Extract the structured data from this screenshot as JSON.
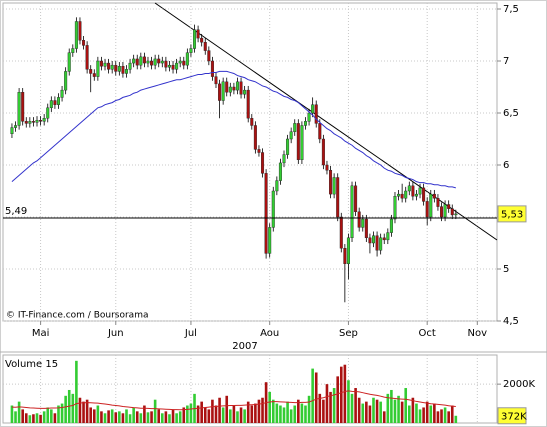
{
  "chart_data": [
    {
      "type": "candlestick",
      "categories": [
        null,
        null,
        null,
        null,
        null,
        null,
        null,
        null,
        null,
        null,
        "Mai",
        null,
        null,
        null,
        null,
        null,
        null,
        null,
        null,
        null,
        null,
        null,
        null,
        null,
        null,
        null,
        null,
        null,
        null,
        null,
        null,
        "Jun",
        null,
        null,
        null,
        null,
        null,
        null,
        null,
        null,
        null,
        null,
        null,
        null,
        null,
        null,
        null,
        null,
        null,
        null,
        null,
        null,
        "Jul",
        null,
        null,
        null,
        null,
        null,
        null,
        null,
        null,
        null,
        null,
        null,
        null,
        null,
        null,
        null,
        null,
        null,
        null,
        null,
        null,
        null,
        "Aou",
        null,
        null,
        null,
        null,
        null,
        null,
        null,
        null,
        null,
        null,
        null,
        null,
        null,
        null,
        null,
        null,
        null,
        null,
        null,
        null,
        null,
        "Sep",
        null,
        null,
        null,
        null,
        null,
        null,
        null,
        null,
        null,
        null,
        null,
        null,
        null,
        null,
        null,
        null,
        null,
        null,
        null,
        null,
        null,
        "Oct",
        null,
        null,
        null,
        null,
        null,
        null,
        null,
        null,
        null,
        null,
        null,
        null,
        null,
        "Nov",
        null,
        null,
        null,
        null,
        null
      ],
      "open": [
        null,
        null,
        6.3,
        6.36,
        6.38,
        6.7,
        6.42,
        6.4,
        6.42,
        6.41,
        6.43,
        6.42,
        6.45,
        6.55,
        6.62,
        6.58,
        6.65,
        6.72,
        6.9,
        7.08,
        7.12,
        7.38,
        7.2,
        7.15,
        6.92,
        6.88,
        6.85,
        7.0,
        6.95,
        6.98,
        6.92,
        6.96,
        6.9,
        6.95,
        6.88,
        6.92,
        6.98,
        7.02,
        6.96,
        7.04,
        6.98,
        7.0,
        6.96,
        7.02,
        6.98,
        7.0,
        6.94,
        6.96,
        6.92,
        6.98,
        7.0,
        6.96,
        7.08,
        7.12,
        7.3,
        7.22,
        7.18,
        7.1,
        7.0,
        6.85,
        6.78,
        6.62,
        6.8,
        6.7,
        6.75,
        6.72,
        6.8,
        6.68,
        6.72,
        6.45,
        6.38,
        6.15,
        6.12,
        5.92,
        5.15,
        5.4,
        5.75,
        5.85,
        6.02,
        6.1,
        6.25,
        6.32,
        6.4,
        6.05,
        6.38,
        6.42,
        6.5,
        6.58,
        6.4,
        6.25,
        6.0,
        5.95,
        5.72,
        5.88,
        5.5,
        5.2,
        5.05,
        5.3,
        5.8,
        5.55,
        5.4,
        5.48,
        5.3,
        5.25,
        5.32,
        5.18,
        5.3,
        5.28,
        5.35,
        5.48,
        5.7,
        5.72,
        5.68,
        5.75,
        5.8,
        5.7,
        5.72,
        5.78,
        5.65,
        5.5,
        5.72,
        5.68,
        5.6,
        5.5,
        5.62,
        5.58,
        5.52,
        null,
        null,
        null,
        null,
        null,
        null,
        null,
        null,
        null,
        null,
        null
      ],
      "high": [
        null,
        null,
        6.4,
        6.42,
        6.74,
        6.74,
        6.46,
        6.46,
        6.46,
        6.47,
        6.47,
        6.49,
        6.59,
        6.66,
        6.66,
        6.69,
        6.76,
        6.94,
        7.12,
        7.16,
        7.42,
        7.42,
        7.24,
        7.19,
        6.96,
        6.92,
        7.04,
        7.04,
        7.02,
        7.02,
        7.0,
        7.0,
        6.99,
        6.99,
        6.96,
        7.02,
        7.06,
        7.06,
        7.08,
        7.08,
        7.04,
        7.04,
        7.06,
        7.06,
        7.04,
        7.04,
        7.0,
        7.0,
        7.02,
        7.04,
        7.04,
        7.12,
        7.16,
        7.35,
        7.34,
        7.26,
        7.22,
        7.14,
        7.04,
        6.89,
        6.82,
        6.84,
        6.84,
        6.79,
        6.79,
        6.84,
        6.84,
        6.76,
        6.76,
        6.49,
        6.42,
        6.19,
        6.16,
        5.96,
        5.44,
        5.79,
        5.89,
        6.06,
        6.14,
        6.29,
        6.36,
        6.44,
        6.44,
        6.42,
        6.46,
        6.54,
        6.65,
        6.62,
        6.44,
        6.29,
        6.04,
        5.99,
        5.92,
        5.92,
        5.54,
        5.24,
        5.34,
        5.84,
        5.84,
        5.59,
        5.52,
        5.52,
        5.34,
        5.36,
        5.36,
        5.34,
        5.34,
        5.39,
        5.52,
        5.74,
        5.76,
        5.82,
        5.79,
        5.84,
        5.84,
        5.76,
        5.82,
        5.82,
        5.69,
        5.76,
        5.76,
        5.72,
        5.64,
        5.66,
        5.66,
        5.62,
        5.57,
        null,
        null,
        null,
        null,
        null,
        null,
        null,
        null,
        null,
        null,
        null
      ],
      "low": [
        null,
        null,
        6.26,
        6.32,
        6.34,
        6.38,
        6.36,
        6.36,
        6.37,
        6.37,
        6.38,
        6.38,
        6.41,
        6.51,
        6.54,
        6.54,
        6.61,
        6.68,
        6.86,
        7.04,
        7.08,
        7.16,
        7.11,
        6.88,
        6.7,
        6.81,
        6.81,
        6.91,
        6.91,
        6.88,
        6.88,
        6.86,
        6.86,
        6.84,
        6.84,
        6.88,
        6.94,
        6.92,
        6.92,
        6.94,
        6.94,
        6.92,
        6.92,
        6.94,
        6.94,
        6.9,
        6.9,
        6.88,
        6.88,
        6.94,
        6.92,
        6.92,
        7.04,
        7.08,
        7.18,
        7.14,
        7.06,
        6.96,
        6.81,
        6.74,
        6.45,
        6.58,
        6.66,
        6.66,
        6.68,
        6.68,
        6.64,
        6.64,
        6.41,
        6.34,
        6.11,
        6.08,
        5.88,
        5.1,
        5.11,
        5.36,
        5.71,
        5.81,
        5.98,
        6.06,
        6.21,
        6.28,
        6.01,
        6.01,
        6.34,
        6.38,
        6.46,
        6.36,
        6.21,
        5.96,
        5.91,
        5.68,
        5.68,
        5.46,
        5.16,
        4.68,
        4.9,
        5.26,
        5.51,
        5.36,
        5.36,
        5.26,
        5.15,
        5.21,
        5.12,
        5.14,
        5.24,
        5.24,
        5.31,
        5.44,
        5.66,
        5.64,
        5.64,
        5.71,
        5.66,
        5.66,
        5.68,
        5.61,
        5.42,
        5.46,
        5.64,
        5.56,
        5.46,
        5.46,
        5.54,
        5.48,
        5.48,
        null,
        null,
        null,
        null,
        null,
        null,
        null,
        null,
        null,
        null,
        null
      ],
      "close": [
        null,
        null,
        6.36,
        6.38,
        6.7,
        6.42,
        6.4,
        6.42,
        6.41,
        6.43,
        6.42,
        6.45,
        6.55,
        6.62,
        6.58,
        6.65,
        6.72,
        6.9,
        7.08,
        7.12,
        7.38,
        7.2,
        7.15,
        6.92,
        6.88,
        6.85,
        7.0,
        6.95,
        6.98,
        6.92,
        6.96,
        6.9,
        6.95,
        6.88,
        6.92,
        6.98,
        7.02,
        6.96,
        7.04,
        6.98,
        7.0,
        6.96,
        7.02,
        6.98,
        7.0,
        6.94,
        6.96,
        6.92,
        6.98,
        7.0,
        6.96,
        7.08,
        7.12,
        7.3,
        7.22,
        7.18,
        7.1,
        7.0,
        6.85,
        6.78,
        6.62,
        6.8,
        6.7,
        6.75,
        6.72,
        6.8,
        6.68,
        6.72,
        6.45,
        6.38,
        6.15,
        6.12,
        5.92,
        5.15,
        5.4,
        5.75,
        5.85,
        6.02,
        6.1,
        6.25,
        6.32,
        6.4,
        6.05,
        6.38,
        6.42,
        6.5,
        6.58,
        6.4,
        6.25,
        6.0,
        5.95,
        5.72,
        5.88,
        5.5,
        5.2,
        5.05,
        5.3,
        5.8,
        5.55,
        5.4,
        5.48,
        5.3,
        5.25,
        5.32,
        5.18,
        5.3,
        5.28,
        5.35,
        5.48,
        5.7,
        5.72,
        5.68,
        5.75,
        5.8,
        5.7,
        5.72,
        5.78,
        5.65,
        5.5,
        5.72,
        5.68,
        5.6,
        5.5,
        5.62,
        5.58,
        5.52,
        5.53,
        null,
        null,
        null,
        null,
        null,
        null,
        null,
        null,
        null,
        null,
        null
      ],
      "up_color": "#33cc33",
      "down_color": "#aa1111",
      "moving_average": {
        "color": "#3333cc",
        "values": [
          null,
          null,
          5.84,
          5.87,
          5.9,
          5.93,
          5.96,
          5.99,
          6.02,
          6.04,
          6.07,
          6.1,
          6.13,
          6.16,
          6.19,
          6.22,
          6.25,
          6.28,
          6.31,
          6.34,
          6.37,
          6.4,
          6.43,
          6.46,
          6.49,
          6.52,
          6.55,
          6.56,
          6.58,
          6.59,
          6.6,
          6.62,
          6.63,
          6.65,
          6.66,
          6.67,
          6.69,
          6.7,
          6.72,
          6.73,
          6.74,
          6.75,
          6.76,
          6.77,
          6.78,
          6.79,
          6.8,
          6.81,
          6.82,
          6.82,
          6.83,
          6.84,
          6.85,
          6.86,
          6.87,
          6.87,
          6.88,
          6.88,
          6.89,
          6.89,
          6.9,
          6.9,
          6.9,
          6.89,
          6.88,
          6.86,
          6.85,
          6.84,
          6.82,
          6.81,
          6.8,
          6.78,
          6.76,
          6.75,
          6.73,
          6.71,
          6.7,
          6.68,
          6.66,
          6.65,
          6.63,
          6.62,
          6.6,
          6.57,
          6.54,
          6.51,
          6.48,
          6.44,
          6.41,
          6.38,
          6.35,
          6.33,
          6.3,
          6.28,
          6.26,
          6.23,
          6.21,
          6.19,
          6.16,
          6.14,
          6.12,
          6.09,
          6.07,
          6.04,
          6.02,
          6.0,
          5.97,
          5.95,
          5.94,
          5.92,
          5.91,
          5.9,
          5.88,
          5.87,
          5.86,
          5.84,
          5.83,
          5.83,
          5.82,
          5.82,
          5.81,
          5.81,
          5.8,
          5.8,
          5.79,
          5.79,
          5.78,
          null,
          null,
          null,
          null,
          null,
          null,
          null,
          null,
          null,
          null,
          null
        ]
      },
      "ylim": [
        4.5,
        7.5
      ],
      "yticks": [
        {
          "value": 4.5,
          "label": "4,5"
        },
        5,
        {
          "value": 5.5,
          "label": "5,5"
        },
        6,
        {
          "value": 6.5,
          "label": "6,5"
        },
        7,
        {
          "value": 7.5,
          "label": "7,5"
        }
      ],
      "grid": true,
      "x_label": "2007",
      "source": "© IT-Finance.com / Boursorama",
      "reference_line": {
        "value": 5.49,
        "label": "5,49"
      },
      "last_value": {
        "value": 5.53,
        "label": "5,53"
      }
    },
    {
      "type": "bar",
      "title": "Volume 15",
      "values": [
        null,
        null,
        900,
        600,
        1100,
        700,
        500,
        400,
        450,
        500,
        420,
        600,
        800,
        700,
        500,
        900,
        1000,
        1400,
        1700,
        1500,
        3200,
        1300,
        1100,
        1200,
        800,
        700,
        900,
        600,
        500,
        650,
        700,
        550,
        600,
        500,
        700,
        450,
        800,
        600,
        500,
        900,
        550,
        600,
        1200,
        700,
        500,
        600,
        450,
        700,
        500,
        600,
        800,
        900,
        1000,
        1500,
        900,
        1100,
        800,
        700,
        1200,
        900,
        1300,
        800,
        1400,
        700,
        900,
        600,
        800,
        700,
        1100,
        900,
        1000,
        1200,
        1300,
        2100,
        1600,
        1200,
        1000,
        900,
        800,
        1100,
        700,
        900,
        1200,
        1000,
        900,
        1400,
        2800,
        2600,
        1500,
        1200,
        2000,
        1600,
        1800,
        2400,
        2900,
        3000,
        2200,
        1500,
        1800,
        1300,
        1000,
        1100,
        900,
        1300,
        1200,
        1100,
        600,
        1500,
        1700,
        1200,
        1400,
        1100,
        1800,
        900,
        1300,
        1000,
        700,
        800,
        1100,
        900,
        1000,
        600,
        700,
        800,
        600,
        900,
        372,
        null,
        null,
        null,
        null,
        null,
        null,
        null,
        null,
        null,
        null,
        null
      ],
      "average": {
        "color": "#cc2222",
        "values": [
          null,
          null,
          820,
          810,
          830,
          820,
          800,
          780,
          770,
          760,
          750,
          750,
          760,
          770,
          770,
          780,
          800,
          830,
          870,
          900,
          1000,
          1030,
          1040,
          1050,
          1040,
          1030,
          1020,
          1000,
          980,
          950,
          920,
          900,
          880,
          850,
          830,
          810,
          790,
          780,
          760,
          760,
          750,
          740,
          740,
          730,
          720,
          710,
          700,
          690,
          690,
          680,
          690,
          700,
          720,
          740,
          760,
          780,
          800,
          820,
          840,
          850,
          870,
          880,
          890,
          900,
          900,
          910,
          910,
          920,
          930,
          940,
          950,
          970,
          1000,
          1050,
          1080,
          1100,
          1100,
          1090,
          1080,
          1070,
          1060,
          1050,
          1050,
          1060,
          1060,
          1080,
          1150,
          1230,
          1270,
          1300,
          1360,
          1400,
          1450,
          1500,
          1560,
          1620,
          1650,
          1630,
          1620,
          1600,
          1560,
          1520,
          1480,
          1450,
          1420,
          1380,
          1330,
          1300,
          1280,
          1260,
          1240,
          1230,
          1220,
          1190,
          1150,
          1110,
          1080,
          1050,
          1020,
          990,
          980,
          960,
          940,
          920,
          890,
          870,
          850,
          null,
          null,
          null,
          null,
          null,
          null,
          null,
          null,
          null,
          null,
          null
        ]
      },
      "ylim": [
        0,
        3500
      ],
      "yticks": [
        {
          "value": 2000,
          "label": "2000K"
        }
      ],
      "grid": true,
      "last_value": {
        "value": 372,
        "label": "372K"
      }
    }
  ]
}
